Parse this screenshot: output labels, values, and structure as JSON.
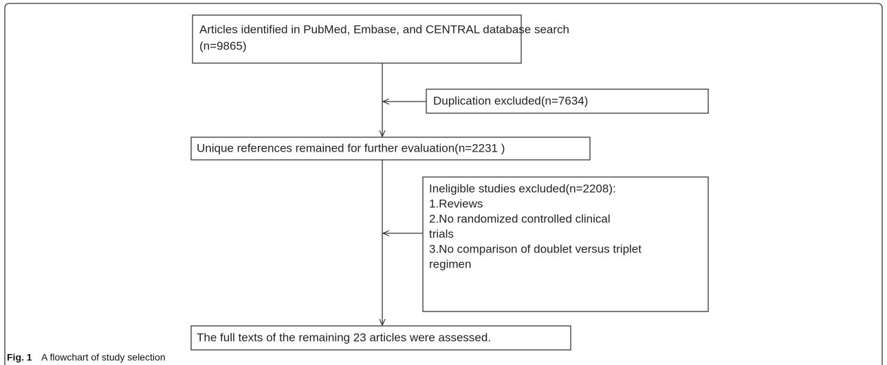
{
  "nodes": [
    {
      "lines": [
        "Articles identified in PubMed, Embase, and CENTRAL database search",
        "(n=9865)"
      ]
    },
    {
      "lines": [
        "Duplication excluded(n=7634)"
      ]
    },
    {
      "lines": [
        "Unique references remained for further evaluation(n=2231 )"
      ]
    },
    {
      "lines": [
        "Ineligible studies excluded(n=2208):",
        "1.Reviews",
        "2.No randomized controlled clinical",
        "trials",
        "3.No comparison of doublet versus triplet",
        "regimen"
      ]
    },
    {
      "lines": [
        "The full texts of the remaining 23 articles were assessed."
      ]
    }
  ],
  "caption": {
    "label": "Fig. 1",
    "text": "A flowchart of study selection"
  }
}
